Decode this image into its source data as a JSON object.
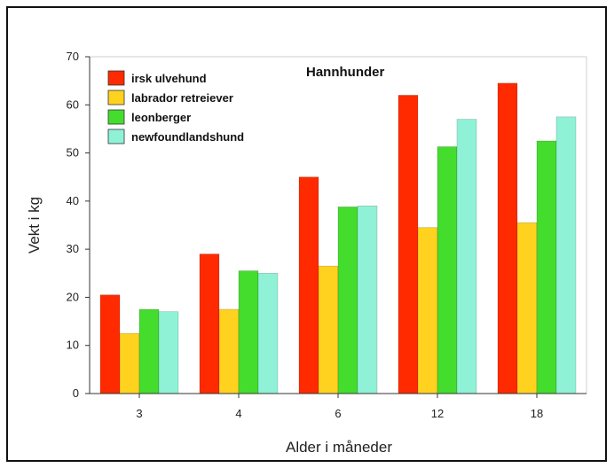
{
  "chart_data": {
    "type": "bar",
    "title": "Hannhunder",
    "xlabel": "Alder i måneder",
    "ylabel": "Vekt i kg",
    "categories": [
      "3",
      "4",
      "6",
      "12",
      "18"
    ],
    "ylim": [
      0,
      70
    ],
    "yticks": [
      "0",
      "10",
      "20",
      "30",
      "40",
      "50",
      "60",
      "70"
    ],
    "grid": false,
    "legend_position": "top-left",
    "series": [
      {
        "name": "irsk ulvehund",
        "color": "#ff2a00",
        "values": [
          20.5,
          29,
          45,
          62,
          64.5
        ]
      },
      {
        "name": "labrador retreiever",
        "color": "#ffd21f",
        "values": [
          12.5,
          17.5,
          26.5,
          34.5,
          35.5
        ]
      },
      {
        "name": "leonberger",
        "color": "#44dd2e",
        "values": [
          17.5,
          25.5,
          38.8,
          51.3,
          52.5
        ]
      },
      {
        "name": "newfoundlandshund",
        "color": "#8ff2d6",
        "values": [
          17,
          25,
          39,
          57,
          57.5
        ]
      }
    ]
  }
}
